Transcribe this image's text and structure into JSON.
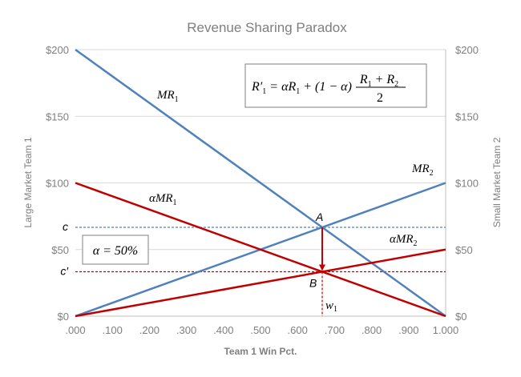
{
  "chart_data": {
    "type": "line",
    "title": "Revenue Sharing Paradox",
    "xlabel": "Team 1 Win Pct.",
    "ylabel_left": "Large Market Team 1",
    "ylabel_right": "Small Market Team 2",
    "xlim": [
      0,
      1
    ],
    "ylim": [
      0,
      200
    ],
    "x_ticks": [
      ".000",
      ".100",
      ".200",
      ".300",
      ".400",
      ".500",
      ".600",
      ".700",
      ".800",
      ".900",
      "1.000"
    ],
    "y_ticks": [
      "$0",
      "$50",
      "$100",
      "$150",
      "$200"
    ],
    "y_tick_values": [
      0,
      50,
      100,
      150,
      200
    ],
    "series": [
      {
        "name": "MR1",
        "color": "#4f81bd",
        "x": [
          0,
          1
        ],
        "y": [
          200,
          0
        ]
      },
      {
        "name": "MR2",
        "color": "#4f81bd",
        "x": [
          0,
          1
        ],
        "y": [
          0,
          100
        ]
      },
      {
        "name": "αMR1",
        "color": "#c00000",
        "x": [
          0,
          1
        ],
        "y": [
          100,
          0
        ]
      },
      {
        "name": "αMR2",
        "color": "#c00000",
        "x": [
          0,
          1
        ],
        "y": [
          0,
          50
        ]
      }
    ],
    "guides": [
      {
        "label": "c",
        "y": 66.67,
        "color": "#4f81bd",
        "style": "dashed"
      },
      {
        "label": "c′",
        "y": 33.33,
        "color": "#c00000",
        "style": "dashed"
      },
      {
        "label": "w",
        "sub": "1",
        "x": 0.6667,
        "color": "#c00000",
        "style": "dashed"
      }
    ],
    "points": [
      {
        "label": "A",
        "x": 0.6667,
        "y": 66.67
      },
      {
        "label": "B",
        "x": 0.6667,
        "y": 33.33
      }
    ],
    "arrow": {
      "from": [
        0.6667,
        66.67
      ],
      "to": [
        0.6667,
        33.33
      ],
      "color": "#c00000"
    },
    "line_labels": {
      "mr1": {
        "main": "MR",
        "sub": "1"
      },
      "mr2": {
        "main": "MR",
        "sub": "2"
      },
      "amr1": {
        "main": "αMR",
        "sub": "1"
      },
      "amr2": {
        "main": "αMR",
        "sub": "2"
      }
    },
    "annotations": {
      "alpha": "α = 50%",
      "formula_lhs": "R′",
      "formula_lhs_sub": "1",
      "formula_mid": " = αR",
      "formula_mid_sub": "1",
      "formula_rest": " + (1 − α)",
      "formula_num": "R",
      "formula_num_sub1": "1",
      "formula_num_plus": " + R",
      "formula_num_sub2": "2",
      "formula_den": "2"
    },
    "grid": true,
    "colors": {
      "blue": "#4f81bd",
      "red": "#c00000",
      "grid": "#d9d9d9",
      "text": "#7f7f7f"
    }
  }
}
